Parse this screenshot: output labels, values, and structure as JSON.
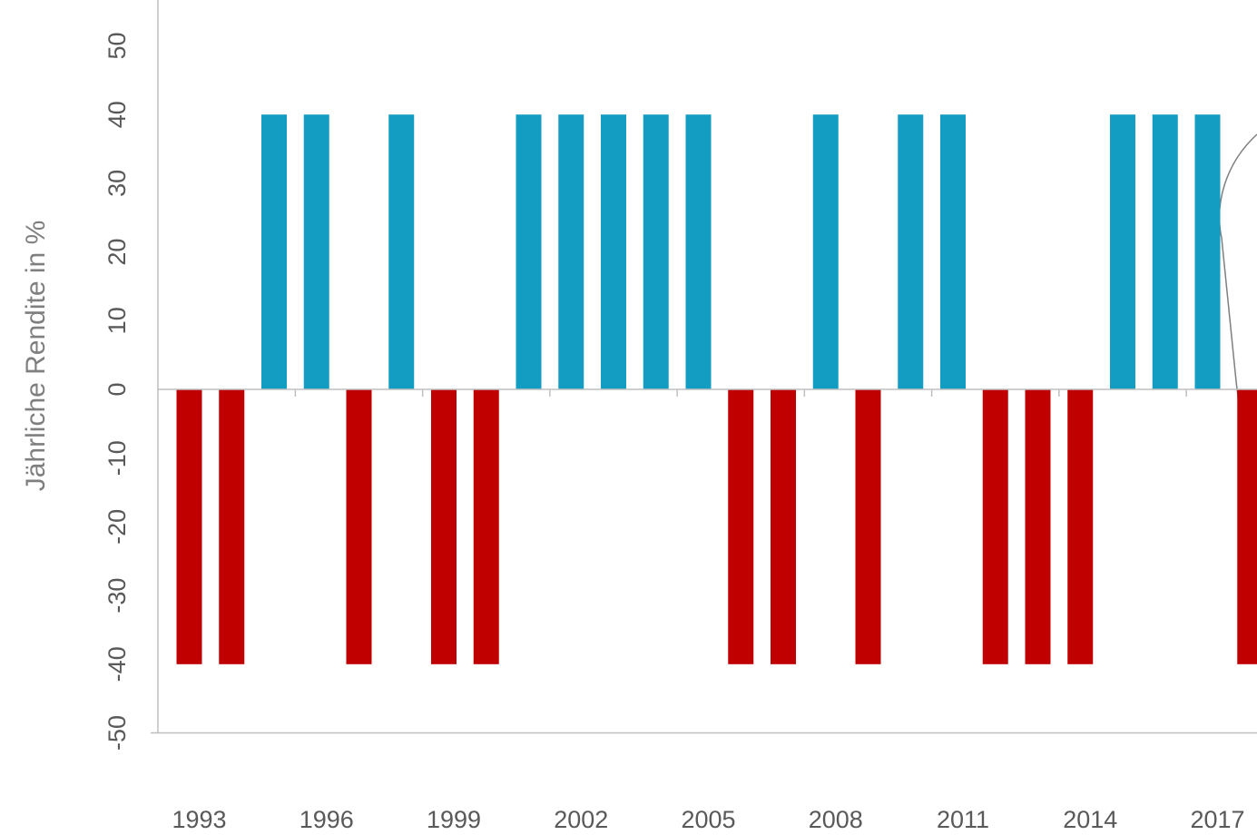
{
  "chart_data": {
    "type": "bar",
    "ylabel": "Jährliche Rendite in %",
    "ylim": [
      -50,
      50
    ],
    "yticks": [
      "-50",
      "-40",
      "-30",
      "-20",
      "-10",
      "0",
      "10",
      "20",
      "30",
      "40",
      "50"
    ],
    "xtick_labels": [
      "1993",
      "1996",
      "1999",
      "2002",
      "2005",
      "2008",
      "2011",
      "2014",
      "2017"
    ],
    "categories": [
      "1993",
      "1994",
      "1995",
      "1996",
      "1997",
      "1998",
      "1999",
      "2000",
      "2001",
      "2002",
      "2003",
      "2004",
      "2005",
      "2006",
      "2007",
      "2008",
      "2009",
      "2010",
      "2011",
      "2012",
      "2013",
      "2014",
      "2015",
      "2016",
      "2017",
      "2018"
    ],
    "values": [
      -40,
      -40,
      40,
      40,
      -40,
      40,
      -40,
      -40,
      40,
      40,
      40,
      40,
      40,
      -40,
      -40,
      40,
      -40,
      40,
      40,
      -40,
      -40,
      -40,
      40,
      40,
      40,
      -40
    ],
    "colors": {
      "positive": "#139DC2",
      "negative": "#C00000",
      "axis": "#BFBFBF",
      "tick_text": "#595959",
      "ylabel": "#7F7F7F",
      "callout": "#7F7F7F"
    },
    "grid": false
  }
}
